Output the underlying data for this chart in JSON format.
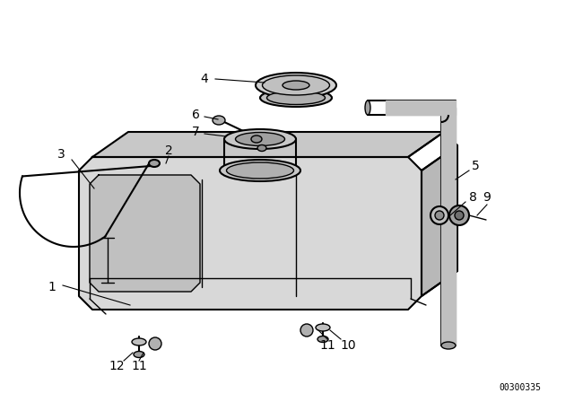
{
  "bg_color": "#ffffff",
  "line_color": "#000000",
  "part_number_text": "00300335",
  "figsize": [
    6.4,
    4.48
  ],
  "dpi": 100,
  "gray_fill": "#c8c8c8",
  "light_gray": "#e8e8e8",
  "mid_gray": "#b0b0b0"
}
